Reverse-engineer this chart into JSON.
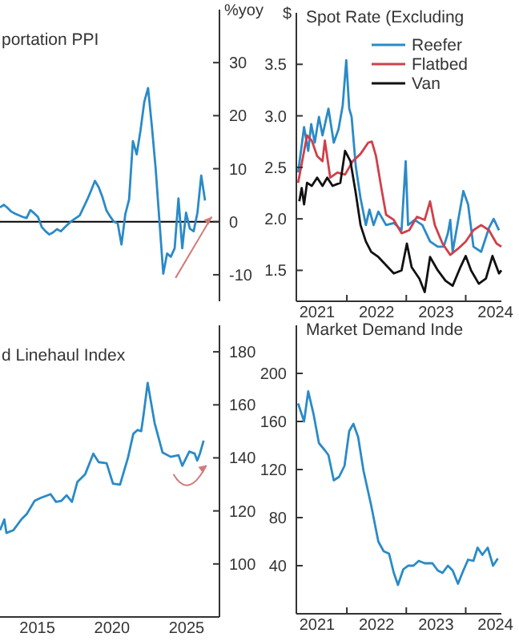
{
  "chart_data": [
    {
      "type": "line",
      "title": "portation PPI",
      "ylabel": "%yoy",
      "categories": [
        null,
        null,
        null,
        null,
        null,
        null,
        null,
        null,
        null,
        null,
        null,
        null,
        null,
        null,
        null,
        null,
        null,
        null,
        null,
        null,
        null,
        null,
        null,
        null,
        null,
        null,
        null,
        null,
        null,
        null,
        null,
        null,
        null,
        null,
        null,
        null,
        null,
        null,
        null,
        null,
        null,
        null,
        null,
        null,
        null,
        null,
        null,
        null,
        null,
        null,
        null,
        null,
        null,
        null,
        null
      ],
      "ylim": [
        -15,
        40
      ],
      "yticks": [
        -10,
        0,
        10,
        20,
        30
      ],
      "tick_labels": "y",
      "grid": false,
      "legend": false,
      "ref_lines": [
        {
          "axis": "y",
          "value": 0,
          "color": "#000000"
        }
      ],
      "series": [
        {
          "color": "#2a8ac8",
          "values": [
            2.7,
            3.2,
            2.6,
            1.9,
            1.5,
            1.2,
            0.9,
            0.7,
            2.2,
            1.6,
            0.9,
            -1.0,
            -1.8,
            -2.4,
            -2.0,
            -1.4,
            -1.8,
            -1.1,
            -0.4,
            0.2,
            0.7,
            1.2,
            2.7,
            4.2,
            5.9,
            7.7,
            6.5,
            4.6,
            2.2,
            1.0,
            0.0,
            -0.3,
            -4.3,
            1.4,
            4.2,
            15.2,
            12.7,
            17.2,
            22.6,
            25.2,
            18.0,
            10.0,
            0.0,
            -9.8,
            -6.0,
            -6.6,
            -5.0,
            4.4,
            -5.0,
            1.7,
            -1.3,
            -1.8,
            1.7,
            8.7,
            4.0
          ]
        }
      ]
    },
    {
      "type": "line",
      "title": "Spot Rate (Excluding",
      "ylabel": "$",
      "xlim": [
        2021.15,
        2024.6
      ],
      "ylim": [
        1.2,
        4.0
      ],
      "yticks": [
        {
          "value": 1.5,
          "label": "1.5"
        },
        {
          "value": 2,
          "label": "2.0"
        },
        {
          "value": 2.5,
          "label": "2.5"
        },
        {
          "value": 3,
          "label": "3.0"
        },
        {
          "value": 3.5,
          "label": "3.5"
        }
      ],
      "xticks": [
        {
          "value": 2021.5,
          "label": "2021"
        },
        {
          "value": 2022,
          "label": null
        },
        {
          "value": 2022.5,
          "label": "2022"
        },
        {
          "value": 2023,
          "label": null
        },
        {
          "value": 2023.5,
          "label": "2023"
        },
        {
          "value": 2024,
          "label": null
        },
        {
          "value": 2024.5,
          "label": "2024"
        }
      ],
      "grid": false,
      "legend": "top",
      "series": [
        {
          "name": "Reefer",
          "color": "#2a8ac8",
          "x": [
            2021.18,
            2021.28,
            2021.35,
            2021.4,
            2021.46,
            2021.53,
            2021.59,
            2021.69,
            2021.78,
            2021.86,
            2021.93,
            2021.99,
            2022.04,
            2022.08,
            2022.15,
            2022.23,
            2022.32,
            2022.38,
            2022.45,
            2022.53,
            2022.66,
            2022.79,
            2022.92,
            2022.99,
            2023.03,
            2023.14,
            2023.27,
            2023.4,
            2023.53,
            2023.63,
            2023.7,
            2023.74,
            2023.78,
            2023.96,
            2024.04,
            2024.13,
            2024.26,
            2024.39,
            2024.47,
            2024.56
          ],
          "values": [
            2.45,
            2.89,
            2.66,
            2.92,
            2.74,
            2.99,
            2.81,
            3.07,
            2.74,
            2.87,
            3.1,
            3.54,
            3.07,
            2.99,
            2.51,
            2.2,
            1.94,
            2.09,
            1.94,
            2.07,
            1.94,
            1.96,
            1.89,
            2.56,
            1.94,
            1.99,
            1.94,
            1.78,
            1.73,
            1.73,
            1.86,
            1.99,
            1.68,
            2.27,
            2.14,
            1.73,
            1.68,
            1.91,
            2.0,
            1.89
          ]
        },
        {
          "name": "Flatbed",
          "color": "#d0404a",
          "x": [
            2021.18,
            2021.33,
            2021.41,
            2021.5,
            2021.59,
            2021.63,
            2021.72,
            2021.84,
            2021.97,
            2022.1,
            2022.23,
            2022.36,
            2022.42,
            2022.49,
            2022.58,
            2022.66,
            2022.79,
            2022.92,
            2023.05,
            2023.18,
            2023.31,
            2023.4,
            2023.48,
            2023.61,
            2023.74,
            2023.87,
            2024.0,
            2024.13,
            2024.26,
            2024.39,
            2024.52,
            2024.6
          ],
          "values": [
            2.35,
            2.81,
            2.76,
            2.61,
            2.56,
            2.76,
            2.4,
            2.45,
            2.43,
            2.56,
            2.63,
            2.74,
            2.75,
            2.61,
            2.3,
            2.04,
            1.99,
            1.86,
            1.89,
            2.02,
            1.99,
            2.17,
            1.94,
            1.76,
            1.65,
            1.71,
            1.78,
            1.89,
            1.94,
            1.89,
            1.76,
            1.73
          ]
        },
        {
          "name": "Van",
          "color": "#111111",
          "x": [
            2021.2,
            2021.24,
            2021.28,
            2021.33,
            2021.41,
            2021.5,
            2021.59,
            2021.67,
            2021.76,
            2021.89,
            2021.97,
            2022.06,
            2022.15,
            2022.23,
            2022.32,
            2022.41,
            2022.53,
            2022.66,
            2022.79,
            2022.92,
            2023.01,
            2023.09,
            2023.22,
            2023.31,
            2023.4,
            2023.53,
            2023.66,
            2023.78,
            2023.91,
            2024.0,
            2024.09,
            2024.22,
            2024.34,
            2024.45,
            2024.56,
            2024.6
          ],
          "values": [
            2.17,
            2.3,
            2.14,
            2.35,
            2.32,
            2.4,
            2.32,
            2.4,
            2.32,
            2.35,
            2.66,
            2.56,
            2.25,
            1.94,
            1.78,
            1.68,
            1.63,
            1.55,
            1.47,
            1.5,
            1.76,
            1.53,
            1.42,
            1.29,
            1.63,
            1.5,
            1.4,
            1.35,
            1.53,
            1.64,
            1.5,
            1.37,
            1.42,
            1.64,
            1.47,
            1.5
          ]
        }
      ]
    },
    {
      "type": "line",
      "title": "d Linehaul Index",
      "xlim": [
        2012.5,
        2027.2
      ],
      "ylim": [
        80,
        190
      ],
      "xticks": [
        2015,
        2020,
        2025
      ],
      "yticks": [
        100,
        120,
        140,
        160,
        180
      ],
      "grid": false,
      "legend": false,
      "series": [
        {
          "color": "#2a8ac8",
          "x": [
            2012.5,
            2012.79,
            2012.93,
            2013.39,
            2013.93,
            2014.29,
            2014.82,
            2015.18,
            2015.89,
            2016.25,
            2016.61,
            2016.96,
            2017.32,
            2017.68,
            2018.21,
            2018.57,
            2018.75,
            2019.11,
            2019.64,
            2020.07,
            2020.54,
            2021.07,
            2021.43,
            2021.71,
            2021.96,
            2022.14,
            2022.39,
            2022.86,
            2023.39,
            2023.93,
            2024.46,
            2024.71,
            2025.18,
            2025.54,
            2025.71,
            2025.89,
            2026.14
          ],
          "values": [
            112.7,
            116.8,
            111.7,
            112.7,
            116.8,
            118.8,
            123.8,
            124.8,
            126.3,
            123.4,
            123.8,
            125.9,
            123.4,
            130.9,
            133.9,
            139,
            141.6,
            138.4,
            138,
            130.3,
            129.9,
            140,
            149.1,
            150.5,
            150.1,
            157.2,
            168.3,
            153.1,
            142,
            140.4,
            141,
            137,
            142.4,
            141.6,
            139,
            141.6,
            146.5
          ]
        }
      ]
    },
    {
      "type": "line",
      "title": "Market Demand Inde",
      "xlim": [
        2021.15,
        2024.6
      ],
      "ylim": [
        0,
        240
      ],
      "yticks": [
        40,
        80,
        120,
        160,
        200
      ],
      "xticks": [
        {
          "value": 2021.5,
          "label": "2021"
        },
        {
          "value": 2022,
          "label": null
        },
        {
          "value": 2022.5,
          "label": "2022"
        },
        {
          "value": 2023,
          "label": null
        },
        {
          "value": 2023.5,
          "label": "2023"
        },
        {
          "value": 2024,
          "label": null
        },
        {
          "value": 2024.5,
          "label": "2024"
        }
      ],
      "grid": false,
      "legend": false,
      "series": [
        {
          "color": "#2a8ac8",
          "x": [
            2021.18,
            2021.28,
            2021.35,
            2021.44,
            2021.53,
            2021.63,
            2021.69,
            2021.78,
            2021.87,
            2021.96,
            2022.04,
            2022.11,
            2022.19,
            2022.28,
            2022.41,
            2022.53,
            2022.62,
            2022.71,
            2022.79,
            2022.86,
            2022.95,
            2023.03,
            2023.12,
            2023.21,
            2023.31,
            2023.44,
            2023.53,
            2023.61,
            2023.7,
            2023.78,
            2023.87,
            2023.96,
            2024.04,
            2024.13,
            2024.2,
            2024.28,
            2024.37,
            2024.46,
            2024.54
          ],
          "values": [
            175,
            160,
            185,
            166,
            142,
            136,
            132,
            111,
            114,
            123,
            152,
            158,
            147,
            119,
            90,
            60,
            52,
            50,
            34,
            24,
            37,
            40,
            40,
            44,
            42,
            42,
            36,
            34,
            40,
            36,
            25,
            36,
            45,
            44,
            55,
            49,
            55,
            40,
            46
          ]
        }
      ]
    }
  ]
}
